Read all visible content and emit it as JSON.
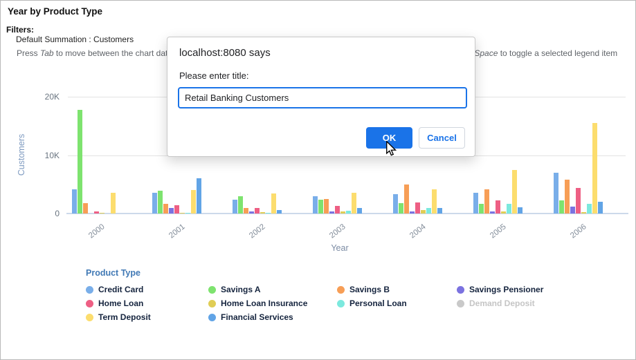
{
  "page": {
    "title": "Year by Product Type",
    "filters_label": "Filters:",
    "filter_value": "Default Summation : Customers",
    "instruction_left": {
      "pre": "Press ",
      "italic": "Tab",
      "post": " to move between the chart data, le"
    },
    "instruction_right": {
      "pre": "r or ",
      "italic": "Space",
      "post": " to toggle a selected legend item"
    }
  },
  "dialog": {
    "source": "localhost:8080 says",
    "prompt": "Please enter title:",
    "input_value": "Retail Banking Customers",
    "ok_label": "OK",
    "cancel_label": "Cancel",
    "accent_color": "#1a73e8"
  },
  "chart_data": {
    "type": "bar",
    "title": "Year by Product Type",
    "xlabel": "Year",
    "ylabel": "Customers",
    "ylim": [
      0,
      20000
    ],
    "yticks": [
      {
        "label": "0",
        "value": 0
      },
      {
        "label": "10K",
        "value": 10000
      },
      {
        "label": "20K",
        "value": 20000
      }
    ],
    "grid": "horizontal",
    "legend_title": "Product Type",
    "legend_position": "bottom",
    "categories": [
      "2000",
      "2001",
      "2002",
      "2003",
      "2004",
      "2005",
      "2006"
    ],
    "series": [
      {
        "name": "Credit Card",
        "color": "#79aee9",
        "disabled": false,
        "values": [
          4100,
          3500,
          2400,
          3000,
          3300,
          3600,
          7000
        ]
      },
      {
        "name": "Savings A",
        "color": "#7ee36f",
        "disabled": false,
        "values": [
          17800,
          3900,
          2900,
          2400,
          1800,
          1700,
          2200
        ]
      },
      {
        "name": "Savings B",
        "color": "#f79e56",
        "disabled": false,
        "values": [
          1800,
          1600,
          1000,
          2500,
          5000,
          4200,
          5800
        ]
      },
      {
        "name": "Savings Pensioner",
        "color": "#7b72e0",
        "disabled": false,
        "values": [
          0,
          1000,
          300,
          300,
          300,
          400,
          1200
        ]
      },
      {
        "name": "Home Loan",
        "color": "#ee5f84",
        "disabled": false,
        "values": [
          300,
          1400,
          1000,
          1300,
          1900,
          2200,
          4400
        ]
      },
      {
        "name": "Home Loan Insurance",
        "color": "#e0cd55",
        "disabled": false,
        "values": [
          150,
          150,
          200,
          350,
          600,
          400,
          200
        ]
      },
      {
        "name": "Personal Loan",
        "color": "#7ce9de",
        "disabled": false,
        "values": [
          0,
          100,
          100,
          500,
          1000,
          1600,
          1700
        ]
      },
      {
        "name": "Demand Deposit",
        "color": "#c9c9c9",
        "disabled": true,
        "values": [
          0,
          0,
          0,
          0,
          0,
          0,
          0
        ]
      },
      {
        "name": "Term Deposit",
        "color": "#fcdd6e",
        "disabled": false,
        "values": [
          3500,
          4000,
          3400,
          3600,
          4100,
          7400,
          15500
        ]
      },
      {
        "name": "Financial Services",
        "color": "#61a4e6",
        "disabled": false,
        "values": [
          0,
          6000,
          600,
          900,
          1000,
          1100,
          2000
        ]
      }
    ]
  }
}
